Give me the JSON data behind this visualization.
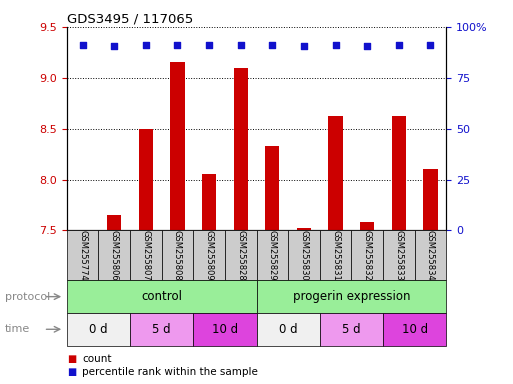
{
  "title": "GDS3495 / 117065",
  "samples": [
    "GSM255774",
    "GSM255806",
    "GSM255807",
    "GSM255808",
    "GSM255809",
    "GSM255828",
    "GSM255829",
    "GSM255830",
    "GSM255831",
    "GSM255832",
    "GSM255833",
    "GSM255834"
  ],
  "bar_values": [
    7.502,
    7.65,
    8.5,
    9.15,
    8.05,
    9.1,
    8.33,
    7.52,
    8.62,
    7.58,
    8.62,
    8.1
  ],
  "dot_values": [
    91,
    90.5,
    91,
    91.3,
    91,
    91,
    91,
    90.5,
    91,
    90.5,
    91.3,
    91
  ],
  "ylim_left": [
    7.5,
    9.5
  ],
  "ylim_right": [
    0,
    100
  ],
  "yticks_left": [
    7.5,
    8.0,
    8.5,
    9.0,
    9.5
  ],
  "yticks_right": [
    0,
    25,
    50,
    75,
    100
  ],
  "bar_color": "#cc0000",
  "dot_color": "#1111cc",
  "bar_baseline": 7.5,
  "protocol_labels": [
    "control",
    "progerin expression"
  ],
  "protocol_split": 6,
  "protocol_color": "#99ee99",
  "time_labels": [
    "0 d",
    "5 d",
    "10 d",
    "0 d",
    "5 d",
    "10 d"
  ],
  "time_colors_light": "#eeaaee",
  "time_colors_dark": "#dd44dd",
  "time_colors_white": "#ffffff",
  "sample_bg_color": "#cccccc",
  "legend_count_color": "#cc0000",
  "legend_dot_color": "#1111cc",
  "fig_width": 5.13,
  "fig_height": 3.84,
  "fig_dpi": 100
}
